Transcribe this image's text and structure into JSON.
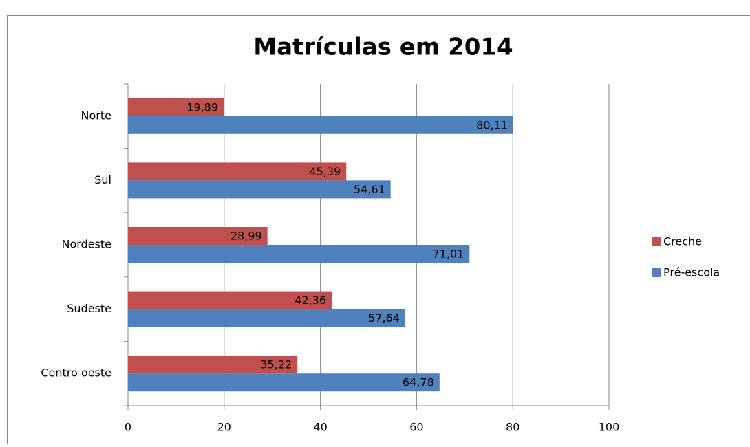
{
  "chart_data": {
    "type": "bar",
    "orientation": "horizontal",
    "title": "Matrículas em 2014",
    "categories": [
      "Norte",
      "Sul",
      "Nordeste",
      "Sudeste",
      "Centro oeste"
    ],
    "series": [
      {
        "name": "Creche",
        "color": "#c0504d",
        "values": [
          19.89,
          45.39,
          28.99,
          42.36,
          35.22
        ],
        "value_labels": [
          "19,89",
          "45,39",
          "28,99",
          "42,36",
          "35,22"
        ]
      },
      {
        "name": "Pré-escola",
        "color": "#4f81bd",
        "values": [
          80.11,
          54.61,
          71.01,
          57.64,
          64.78
        ],
        "value_labels": [
          "80,11",
          "54,61",
          "71,01",
          "57,64",
          "64,78"
        ]
      }
    ],
    "xlim": [
      0,
      100
    ],
    "xticks": [
      0,
      20,
      40,
      60,
      80,
      100
    ],
    "grid": true,
    "legend": "right"
  }
}
